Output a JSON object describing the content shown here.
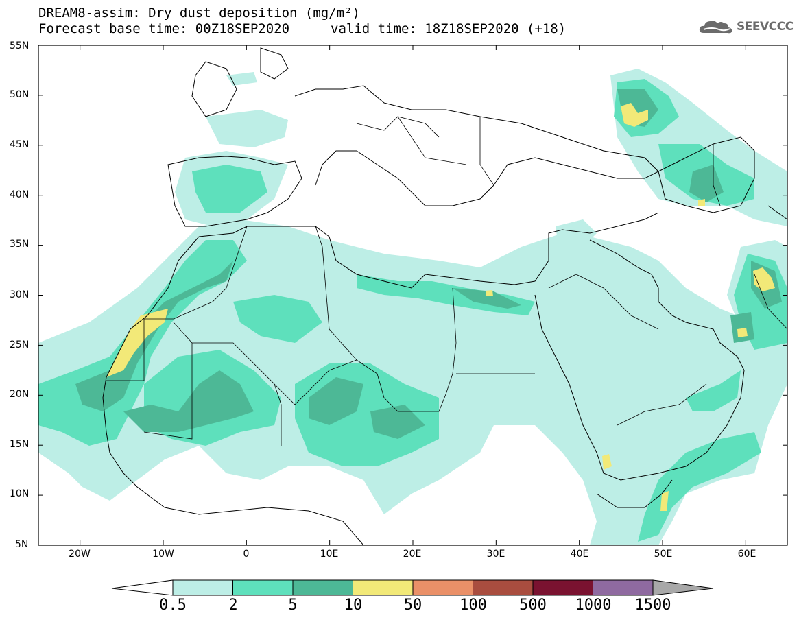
{
  "title": {
    "line1": "DREAM8-assim: Dry dust deposition (mg/m²)",
    "line2": "Forecast base time: 00Z18SEP2020",
    "valid": "valid time: 18Z18SEP2020 (+18)"
  },
  "logo": {
    "text": "SEEVCCC",
    "icon": "cloud-icon"
  },
  "lat_labels": [
    "55N",
    "50N",
    "45N",
    "40N",
    "35N",
    "30N",
    "25N",
    "20N",
    "15N",
    "10N",
    "5N"
  ],
  "lon_labels": [
    "20W",
    "10W",
    "0",
    "10E",
    "20E",
    "30E",
    "40E",
    "50E",
    "60E"
  ],
  "colorbar": {
    "labels": [
      "0.5",
      "2",
      "5",
      "10",
      "50",
      "100",
      "500",
      "1000",
      "1500"
    ],
    "colors": [
      "#bdeee6",
      "#5ee0bc",
      "#4db896",
      "#f2e978",
      "#ea9068",
      "#a94d3f",
      "#7a1230",
      "#8f6aa0",
      "#a8a8a8"
    ]
  },
  "map": {
    "extent": {
      "lon": [
        -25,
        65
      ],
      "lat": [
        5,
        55
      ]
    },
    "field": "dry dust deposition"
  }
}
